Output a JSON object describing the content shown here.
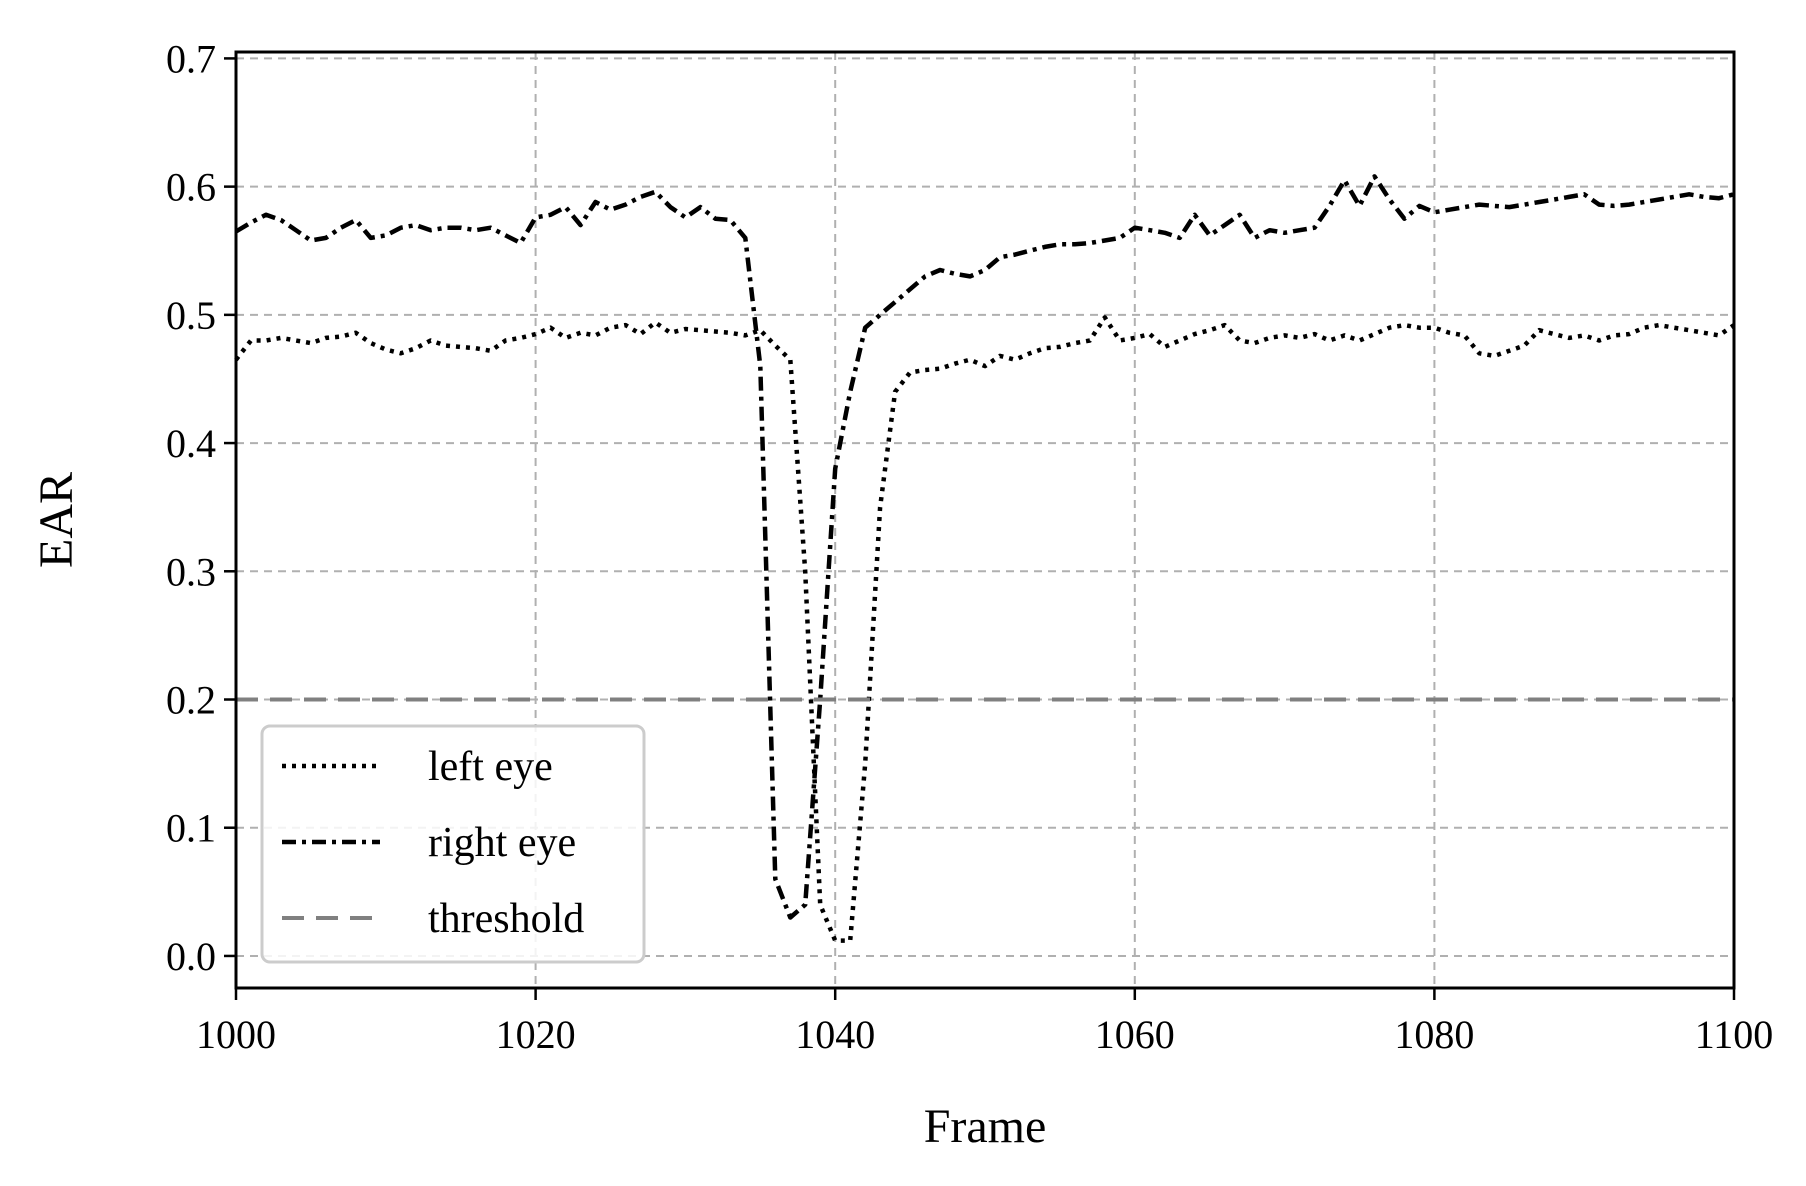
{
  "chart_data": {
    "type": "line",
    "title": "",
    "xlabel": "Frame",
    "ylabel": "EAR",
    "xlim": [
      1000,
      1100
    ],
    "ylim": [
      -0.025,
      0.705
    ],
    "xticks": [
      1000,
      1020,
      1040,
      1060,
      1080,
      1100
    ],
    "yticks": [
      0.0,
      0.1,
      0.2,
      0.3,
      0.4,
      0.5,
      0.6,
      0.7
    ],
    "xtick_labels": [
      "1000",
      "1020",
      "1040",
      "1060",
      "1080",
      "1100"
    ],
    "ytick_labels": [
      "0.0",
      "0.1",
      "0.2",
      "0.3",
      "0.4",
      "0.5",
      "0.6",
      "0.7"
    ],
    "grid": true,
    "legend_position": "lower-left",
    "series": [
      {
        "name": "left eye",
        "style": "dotted",
        "color": "#000000",
        "x": [
          1000,
          1001,
          1002,
          1003,
          1004,
          1005,
          1006,
          1007,
          1008,
          1009,
          1010,
          1011,
          1012,
          1013,
          1014,
          1015,
          1016,
          1017,
          1018,
          1019,
          1020,
          1021,
          1022,
          1023,
          1024,
          1025,
          1026,
          1027,
          1028,
          1029,
          1030,
          1031,
          1032,
          1033,
          1034,
          1035,
          1036,
          1037,
          1038,
          1039,
          1040,
          1041,
          1042,
          1043,
          1044,
          1045,
          1046,
          1047,
          1048,
          1049,
          1050,
          1051,
          1052,
          1053,
          1054,
          1055,
          1056,
          1057,
          1058,
          1059,
          1060,
          1061,
          1062,
          1063,
          1064,
          1065,
          1066,
          1067,
          1068,
          1069,
          1070,
          1071,
          1072,
          1073,
          1074,
          1075,
          1076,
          1077,
          1078,
          1079,
          1080,
          1081,
          1082,
          1083,
          1084,
          1085,
          1086,
          1087,
          1088,
          1089,
          1090,
          1091,
          1092,
          1093,
          1094,
          1095,
          1096,
          1097,
          1098,
          1099,
          1100
        ],
        "values": [
          0.465,
          0.48,
          0.48,
          0.482,
          0.48,
          0.478,
          0.482,
          0.483,
          0.486,
          0.478,
          0.473,
          0.47,
          0.474,
          0.48,
          0.476,
          0.475,
          0.474,
          0.472,
          0.48,
          0.482,
          0.485,
          0.49,
          0.482,
          0.486,
          0.484,
          0.49,
          0.492,
          0.485,
          0.494,
          0.486,
          0.489,
          0.488,
          0.487,
          0.486,
          0.484,
          0.488,
          0.476,
          0.465,
          0.3,
          0.04,
          0.012,
          0.012,
          0.15,
          0.35,
          0.44,
          0.455,
          0.457,
          0.458,
          0.462,
          0.465,
          0.46,
          0.468,
          0.465,
          0.47,
          0.474,
          0.475,
          0.478,
          0.48,
          0.498,
          0.48,
          0.482,
          0.485,
          0.475,
          0.48,
          0.485,
          0.488,
          0.492,
          0.48,
          0.478,
          0.482,
          0.484,
          0.482,
          0.485,
          0.48,
          0.484,
          0.48,
          0.485,
          0.49,
          0.492,
          0.49,
          0.49,
          0.486,
          0.484,
          0.47,
          0.468,
          0.472,
          0.476,
          0.488,
          0.485,
          0.482,
          0.484,
          0.48,
          0.484,
          0.485,
          0.49,
          0.492,
          0.49,
          0.488,
          0.486,
          0.484,
          0.492
        ]
      },
      {
        "name": "right eye",
        "style": "dashdot",
        "color": "#000000",
        "x": [
          1000,
          1001,
          1002,
          1003,
          1004,
          1005,
          1006,
          1007,
          1008,
          1009,
          1010,
          1011,
          1012,
          1013,
          1014,
          1015,
          1016,
          1017,
          1018,
          1019,
          1020,
          1021,
          1022,
          1023,
          1024,
          1025,
          1026,
          1027,
          1028,
          1029,
          1030,
          1031,
          1032,
          1033,
          1034,
          1035,
          1036,
          1037,
          1038,
          1039,
          1040,
          1041,
          1042,
          1043,
          1044,
          1045,
          1046,
          1047,
          1048,
          1049,
          1050,
          1051,
          1052,
          1053,
          1054,
          1055,
          1056,
          1057,
          1058,
          1059,
          1060,
          1061,
          1062,
          1063,
          1064,
          1065,
          1066,
          1067,
          1068,
          1069,
          1070,
          1071,
          1072,
          1073,
          1074,
          1075,
          1076,
          1077,
          1078,
          1079,
          1080,
          1081,
          1082,
          1083,
          1084,
          1085,
          1086,
          1087,
          1088,
          1089,
          1090,
          1091,
          1092,
          1093,
          1094,
          1095,
          1096,
          1097,
          1098,
          1099,
          1100
        ],
        "values": [
          0.565,
          0.572,
          0.578,
          0.574,
          0.566,
          0.558,
          0.56,
          0.568,
          0.574,
          0.56,
          0.562,
          0.568,
          0.57,
          0.566,
          0.568,
          0.568,
          0.566,
          0.568,
          0.562,
          0.556,
          0.576,
          0.578,
          0.584,
          0.57,
          0.588,
          0.582,
          0.586,
          0.592,
          0.596,
          0.584,
          0.576,
          0.584,
          0.575,
          0.574,
          0.56,
          0.46,
          0.06,
          0.03,
          0.04,
          0.2,
          0.38,
          0.44,
          0.49,
          0.5,
          0.51,
          0.52,
          0.53,
          0.535,
          0.532,
          0.53,
          0.535,
          0.545,
          0.547,
          0.55,
          0.553,
          0.555,
          0.555,
          0.556,
          0.558,
          0.56,
          0.568,
          0.566,
          0.564,
          0.56,
          0.578,
          0.562,
          0.57,
          0.578,
          0.56,
          0.566,
          0.564,
          0.566,
          0.568,
          0.585,
          0.605,
          0.585,
          0.608,
          0.59,
          0.575,
          0.585,
          0.58,
          0.582,
          0.584,
          0.586,
          0.585,
          0.584,
          0.586,
          0.588,
          0.59,
          0.592,
          0.594,
          0.586,
          0.585,
          0.586,
          0.588,
          0.59,
          0.592,
          0.594,
          0.592,
          0.591,
          0.594
        ]
      },
      {
        "name": "threshold",
        "style": "dashed",
        "color": "#808080",
        "x": [
          1000,
          1100
        ],
        "values": [
          0.2,
          0.2
        ]
      }
    ]
  }
}
